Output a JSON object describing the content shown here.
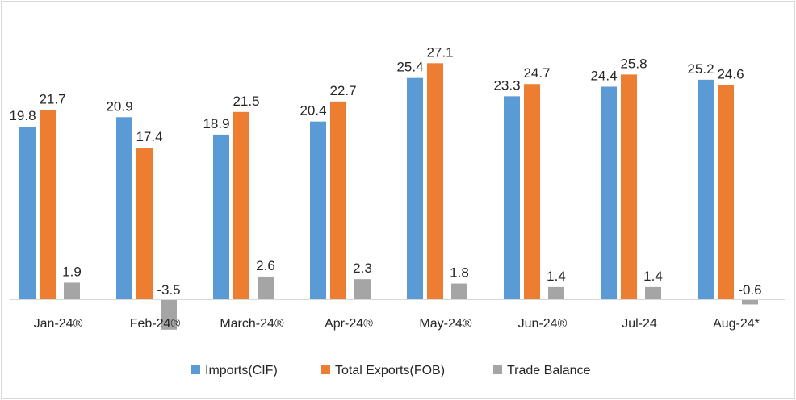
{
  "chart_data": {
    "type": "bar",
    "title": "",
    "xlabel": "",
    "ylabel": "",
    "categories": [
      "Jan-24®",
      "Feb-24®",
      "March-24®",
      "Apr-24®",
      "May-24®",
      "Jun-24®",
      "Jul-24",
      "Aug-24*"
    ],
    "series": [
      {
        "name": "Imports(CIF)",
        "color": "#5b9bd5",
        "values": [
          19.8,
          20.9,
          18.9,
          20.4,
          25.4,
          23.3,
          24.4,
          25.2
        ],
        "labels": [
          "19.8",
          "20.9",
          "18.9",
          "20.4",
          "25.4",
          "23.3",
          "24.4",
          "25.2"
        ]
      },
      {
        "name": "Total Exports(FOB)",
        "color": "#ed7d31",
        "values": [
          21.7,
          17.4,
          21.5,
          22.7,
          27.1,
          24.7,
          25.8,
          24.6
        ],
        "labels": [
          "21.7",
          "17.4",
          "21.5",
          "22.7",
          "27.1",
          "24.7",
          "25.8",
          "24.6"
        ]
      },
      {
        "name": "Trade Balance",
        "color": "#a5a5a5",
        "values": [
          1.9,
          -3.5,
          2.6,
          2.3,
          1.8,
          1.4,
          1.4,
          -0.6
        ],
        "labels": [
          "1.9",
          "-3.5",
          "2.6",
          "2.3",
          "1.8",
          "1.4",
          "1.4",
          "-0.6"
        ]
      }
    ],
    "ylim": [
      -3.5,
      30
    ],
    "grid": false,
    "legend_position": "bottom",
    "axis_color": "#d9d9d9"
  }
}
